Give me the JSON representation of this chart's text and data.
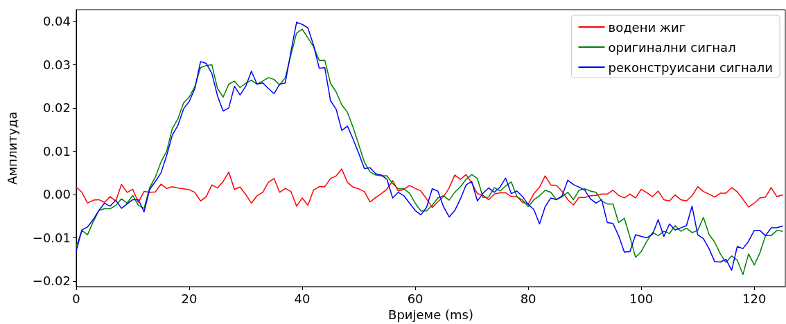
{
  "chart_data": {
    "type": "line",
    "xlabel": "Вријеме (ms)",
    "ylabel": "Амплитуда",
    "x": [
      0,
      1,
      2,
      3,
      4,
      5,
      6,
      7,
      8,
      9,
      10,
      11,
      12,
      13,
      14,
      15,
      16,
      17,
      18,
      19,
      20,
      21,
      22,
      23,
      24,
      25,
      26,
      27,
      28,
      29,
      30,
      31,
      32,
      33,
      34,
      35,
      36,
      37,
      38,
      39,
      40,
      41,
      42,
      43,
      44,
      45,
      46,
      47,
      48,
      49,
      50,
      51,
      52,
      53,
      54,
      55,
      56,
      57,
      58,
      59,
      60,
      61,
      62,
      63,
      64,
      65,
      66,
      67,
      68,
      69,
      70,
      71,
      72,
      73,
      74,
      75,
      76,
      77,
      78,
      79,
      80,
      81,
      82,
      83,
      84,
      85,
      86,
      87,
      88,
      89,
      90,
      91,
      92,
      93,
      94,
      95,
      96,
      97,
      98,
      99,
      100,
      101,
      102,
      103,
      104,
      105,
      106,
      107,
      108,
      109,
      110,
      111,
      112,
      113,
      114,
      115,
      116,
      117,
      118,
      119,
      120,
      121,
      122,
      123,
      124,
      125
    ],
    "series": [
      {
        "name": "водени жиг",
        "color": "#ff0000",
        "values": [
          0.0017,
          0.0005,
          -0.002,
          -0.0013,
          -0.0012,
          -0.0018,
          -0.0005,
          -0.0015,
          0.0023,
          0.0005,
          0.0012,
          -0.0018,
          0.0007,
          0.0005,
          0.0006,
          0.0024,
          0.0014,
          0.0018,
          0.0015,
          0.0013,
          0.0011,
          0.0005,
          -0.0015,
          -0.0005,
          0.0022,
          0.0015,
          0.003,
          0.0052,
          0.0012,
          0.0017,
          0,
          -0.002,
          -0.0003,
          0.0005,
          0.0028,
          0.0037,
          0.0005,
          0.0014,
          0.0007,
          -0.0027,
          -0.0008,
          -0.0025,
          0.001,
          0.0018,
          0.0018,
          0.0037,
          0.0043,
          0.0059,
          0.0028,
          0.0017,
          0.0013,
          0.0007,
          -0.0017,
          -0.0007,
          0.0002,
          0.0012,
          0.0032,
          0.0008,
          0.0012,
          0.0021,
          0.0014,
          0.0008,
          -0.001,
          -0.003,
          -0.0017,
          -0.0005,
          0.0015,
          0.0045,
          0.0035,
          0.0046,
          0.0027,
          0.0002,
          -0.0002,
          -0.0012,
          0.0001,
          0.0004,
          0.0004,
          -0.0005,
          -0.0005,
          -0.0018,
          -0.0022,
          0.0002,
          0.0017,
          0.0043,
          0.0022,
          0.0021,
          0.0007,
          -0.0012,
          -0.0024,
          -0.0007,
          -0.0007,
          -0.0003,
          -0.0002,
          0.0001,
          0.0001,
          0.001,
          -0.0002,
          -0.0008,
          0.0001,
          -0.0008,
          0.0012,
          0.0004,
          -0.0005,
          0.0008,
          -0.0012,
          -0.0015,
          -0.0001,
          -0.0012,
          -0.0015,
          -0.0003,
          0.0018,
          0.0007,
          0.0001,
          -0.0006,
          0.0003,
          0.0003,
          0.0016,
          0.0006,
          -0.0011,
          -0.0029,
          -0.002,
          -0.0008,
          -0.0006,
          0.0016,
          -0.0005,
          -0.0001
        ]
      },
      {
        "name": "оригинални сигнал",
        "color": "#008000",
        "values": [
          -0.012,
          -0.0083,
          -0.0093,
          -0.0063,
          -0.0037,
          -0.0033,
          -0.0033,
          -0.0025,
          -0.001,
          -0.002,
          -0.0002,
          -0.0025,
          -0.0032,
          0.0016,
          0.004,
          0.0075,
          0.01,
          0.0152,
          0.0175,
          0.0212,
          0.0225,
          0.025,
          0.0293,
          0.0298,
          0.03,
          0.0245,
          0.0225,
          0.0255,
          0.0262,
          0.0247,
          0.0257,
          0.0264,
          0.0255,
          0.0262,
          0.027,
          0.0266,
          0.0253,
          0.027,
          0.0323,
          0.0373,
          0.0382,
          0.0362,
          0.0342,
          0.031,
          0.031,
          0.0257,
          0.0237,
          0.0207,
          0.019,
          0.0155,
          0.0115,
          0.0075,
          0.0052,
          0.0045,
          0.0043,
          0.0043,
          0.0025,
          0.0013,
          0.0013,
          0.0003,
          -0.002,
          -0.0038,
          -0.0038,
          -0.0025,
          -0.0008,
          -0.0003,
          -0.0013,
          0.0005,
          0.0018,
          0.0035,
          0.0046,
          0.0037,
          -0.0007,
          -0.0006,
          0.0016,
          0.0008,
          0.002,
          0.0029,
          -0.0005,
          -0.0013,
          -0.0028,
          -0.0012,
          -0.0003,
          0.001,
          0.0005,
          -0.0012,
          -0.0005,
          0.0005,
          -0.0012,
          0.001,
          0.0013,
          0.0008,
          0.0005,
          -0.0015,
          -0.0022,
          -0.0022,
          -0.0065,
          -0.0055,
          -0.0098,
          -0.0145,
          -0.0132,
          -0.0108,
          -0.0088,
          -0.0095,
          -0.0085,
          -0.009,
          -0.0072,
          -0.0085,
          -0.0078,
          -0.0088,
          -0.0083,
          -0.0053,
          -0.0092,
          -0.011,
          -0.0137,
          -0.0157,
          -0.0142,
          -0.0152,
          -0.0185,
          -0.0137,
          -0.0163,
          -0.0135,
          -0.0095,
          -0.0095,
          -0.0083,
          -0.0085
        ]
      },
      {
        "name": "реконструисани сигнали",
        "color": "#0000ff",
        "values": [
          -0.013,
          -0.0082,
          -0.0075,
          -0.0058,
          -0.0037,
          -0.002,
          -0.0027,
          -0.0013,
          -0.0032,
          -0.0022,
          -0.0012,
          -0.0012,
          -0.004,
          0.0012,
          0.003,
          0.005,
          0.009,
          0.0137,
          0.016,
          0.0198,
          0.0215,
          0.0245,
          0.0307,
          0.0303,
          0.028,
          0.0228,
          0.0193,
          0.02,
          0.025,
          0.023,
          0.025,
          0.0285,
          0.0255,
          0.0258,
          0.0245,
          0.0233,
          0.0255,
          0.0258,
          0.033,
          0.0398,
          0.0393,
          0.0385,
          0.0345,
          0.0292,
          0.0293,
          0.0217,
          0.0197,
          0.0148,
          0.0158,
          0.0128,
          0.0095,
          0.006,
          0.0062,
          0.0048,
          0.0045,
          0.0035,
          -0.0008,
          0.0005,
          -0.0003,
          -0.002,
          -0.0037,
          -0.0047,
          -0.003,
          0.0013,
          0.0008,
          -0.0028,
          -0.0052,
          -0.0037,
          -0.001,
          0.0022,
          0.003,
          -0.0015,
          0.0003,
          0.0015,
          0.0005,
          0.0017,
          0.0038,
          0.0002,
          0.0008,
          -0.0005,
          -0.0023,
          -0.0035,
          -0.0068,
          -0.0028,
          -0.0008,
          -0.0012,
          -0.0003,
          0.0033,
          0.0023,
          0.0017,
          0.001,
          -0.001,
          -0.002,
          -0.0012,
          -0.0065,
          -0.0067,
          -0.0095,
          -0.0133,
          -0.0132,
          -0.0093,
          -0.0097,
          -0.01,
          -0.0092,
          -0.0058,
          -0.0097,
          -0.0068,
          -0.0082,
          -0.0077,
          -0.0072,
          -0.0027,
          -0.0093,
          -0.0102,
          -0.0125,
          -0.0155,
          -0.0156,
          -0.015,
          -0.0175,
          -0.012,
          -0.0125,
          -0.0108,
          -0.0083,
          -0.0083,
          -0.0095,
          -0.0077,
          -0.0077,
          -0.0073
        ]
      }
    ],
    "xlim": [
      0,
      125.5
    ],
    "ylim": [
      -0.0213,
      0.0427
    ],
    "xticks": [
      0,
      20,
      40,
      60,
      80,
      100,
      120
    ],
    "yticks": [
      {
        "value": -0.02,
        "label": "−0.02"
      },
      {
        "value": -0.01,
        "label": "−0.01"
      },
      {
        "value": 0,
        "label": "0.00"
      },
      {
        "value": 0.01,
        "label": "0.01"
      },
      {
        "value": 0.02,
        "label": "0.02"
      },
      {
        "value": 0.03,
        "label": "0.03"
      },
      {
        "value": 0.04,
        "label": "0.04"
      }
    ],
    "grid": false,
    "legend": "top right",
    "marker": "none",
    "line_style": "solid"
  }
}
